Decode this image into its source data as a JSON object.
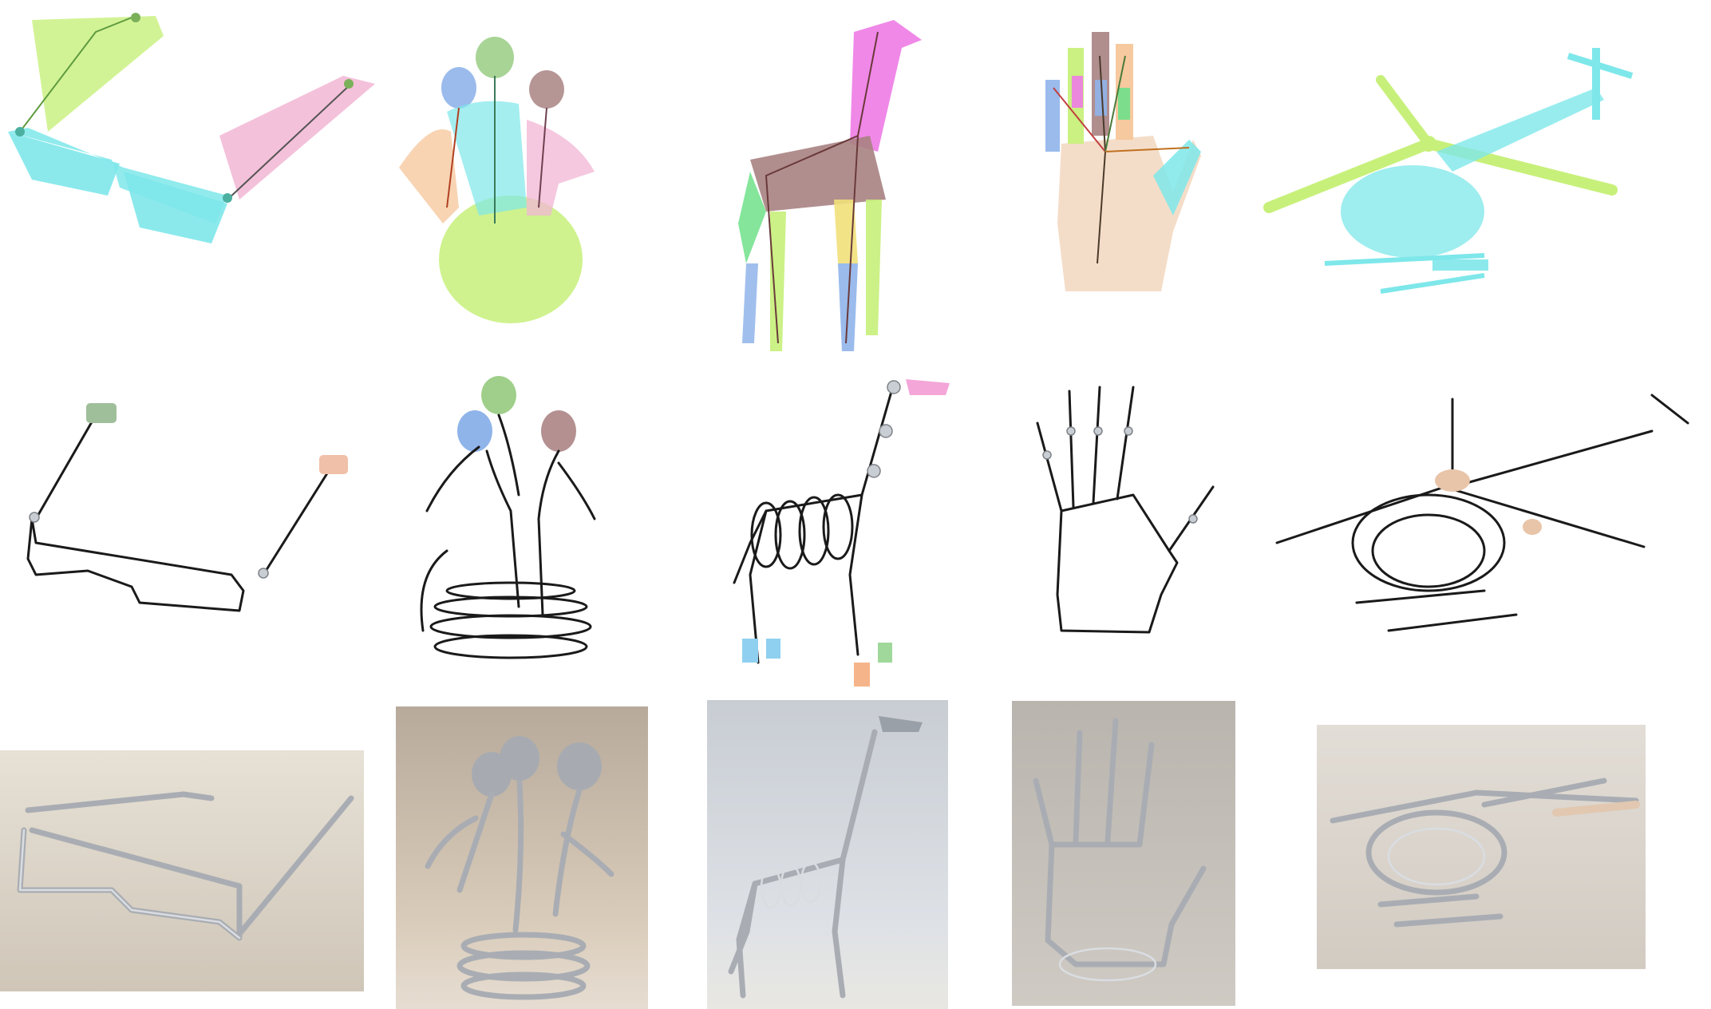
{
  "figure": {
    "rows": [
      "segmented-meshes",
      "wire-designs",
      "fabricated-photos"
    ],
    "objects": [
      "glasses",
      "figures",
      "giraffe",
      "hand",
      "helicopter"
    ]
  },
  "colors": {
    "background": "#ffffff",
    "cyan": "#7ee7ea",
    "green": "#c7f07a",
    "pink": "#f2b6d4",
    "magenta": "#ee7be6",
    "mauve": "#a98282",
    "blue": "#8fb4ea",
    "orange": "#f6c69a",
    "skin": "#f4ddc8",
    "wire": "#1a1a1a",
    "metal": "#a9adb3",
    "photo_bg_warm": "#d9cbb9",
    "photo_bg_cool": "#d4d8df"
  }
}
